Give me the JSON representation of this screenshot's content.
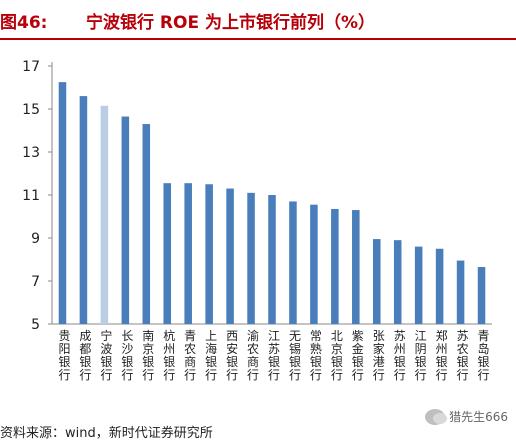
{
  "header": {
    "figure_label": "图46:",
    "title": "宁波银行 ROE 为上市银行前列（%）"
  },
  "footer": {
    "source": "资料来源：wind，新时代证券研究所",
    "watermark": "猎先生666"
  },
  "chart_data": {
    "type": "bar",
    "title": "宁波银行 ROE 为上市银行前列（%）",
    "xlabel": "",
    "ylabel": "",
    "ylim": [
      5,
      17
    ],
    "yticks": [
      5,
      7,
      9,
      11,
      13,
      15,
      17
    ],
    "grid": false,
    "legend": "none",
    "categories": [
      "贵阳银行",
      "成都银行",
      "宁波银行",
      "长沙银行",
      "南京银行",
      "杭州银行",
      "青农商行",
      "上海银行",
      "西安银行",
      "渝农商行",
      "江苏银行",
      "无锡银行",
      "常熟银行",
      "北京银行",
      "紫金银行",
      "张家港行",
      "苏州银行",
      "江阴银行",
      "郑州银行",
      "苏农银行",
      "青岛银行"
    ],
    "values": [
      16.25,
      15.6,
      15.15,
      14.65,
      14.3,
      11.55,
      11.55,
      11.5,
      11.3,
      11.1,
      11.0,
      10.7,
      10.55,
      10.35,
      10.3,
      8.95,
      8.9,
      8.6,
      8.5,
      7.95,
      7.65
    ],
    "highlight_index": 2,
    "colors": {
      "bar": "#4a7ebb",
      "highlight": "#b9cde5",
      "axis": "#888888"
    }
  }
}
